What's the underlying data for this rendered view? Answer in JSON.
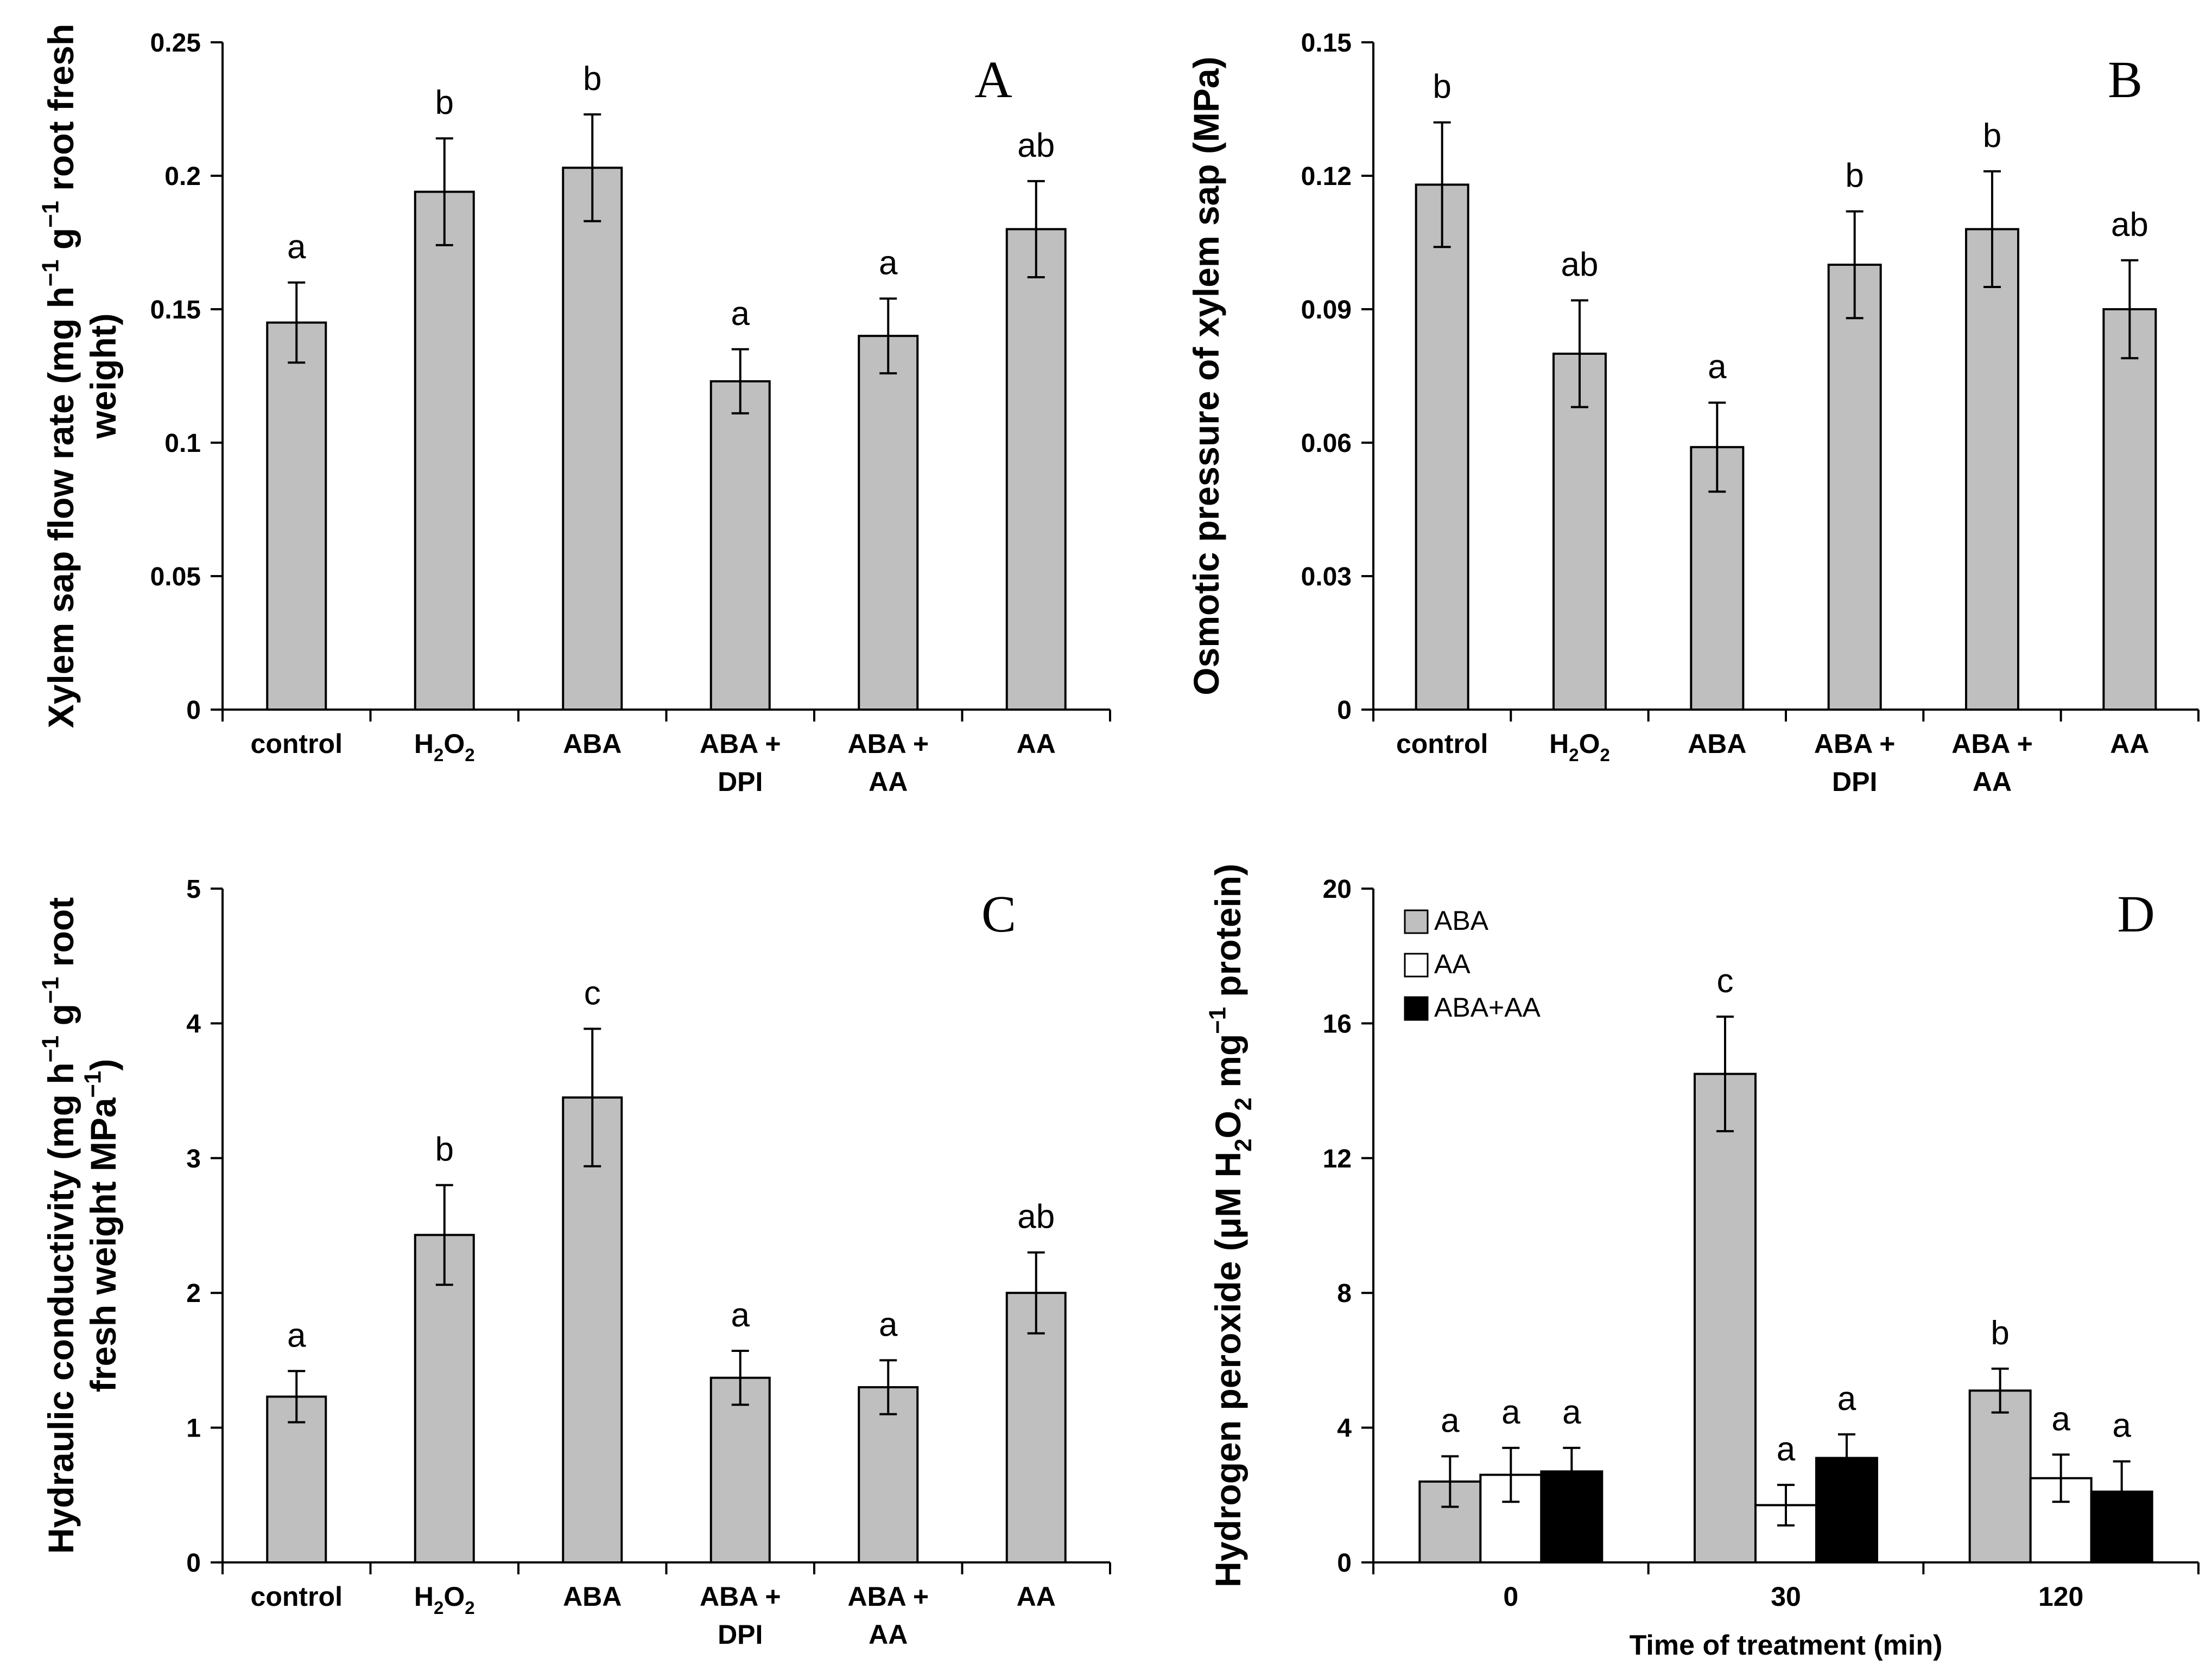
{
  "chart_data": [
    {
      "type": "bar",
      "panel": "A",
      "ylabel": "Xylem sap flow rate (mg h⁻¹ g⁻¹ root fresh weight)",
      "ylabel_lines": [
        "Xylem sap flow rate (mg h⁻¹ g⁻¹ root fresh",
        "weight)"
      ],
      "xlabel": "",
      "ylim": [
        0,
        0.25
      ],
      "yticks": [
        "0",
        "0.05",
        "0.1",
        "0.15",
        "0.2",
        "0.25"
      ],
      "categories": [
        [
          "control"
        ],
        [
          "H₂O₂"
        ],
        [
          "ABA"
        ],
        [
          "ABA +",
          "DPI"
        ],
        [
          "ABA +",
          "AA"
        ],
        [
          "AA"
        ]
      ],
      "values": [
        0.145,
        0.194,
        0.203,
        0.123,
        0.14,
        0.18
      ],
      "errors": [
        0.015,
        0.02,
        0.02,
        0.012,
        0.014,
        0.018
      ],
      "significance": [
        "a",
        "b",
        "b",
        "a",
        "a",
        "ab"
      ],
      "bar_color": "#bfbfbf"
    },
    {
      "type": "bar",
      "panel": "B",
      "ylabel": "Osmotic pressure of xylem sap (MPa)",
      "ylabel_lines": [
        "Osmotic  pressure of xylem  sap (MPa)"
      ],
      "xlabel": "",
      "ylim": [
        0,
        0.15
      ],
      "yticks": [
        "0",
        "0.03",
        "0.06",
        "0.09",
        "0.12",
        "0.15"
      ],
      "categories": [
        [
          "control"
        ],
        [
          "H₂O₂"
        ],
        [
          "ABA"
        ],
        [
          "ABA +",
          "DPI"
        ],
        [
          "ABA +",
          "AA"
        ],
        [
          "AA"
        ]
      ],
      "values": [
        0.118,
        0.08,
        0.059,
        0.1,
        0.108,
        0.09
      ],
      "errors": [
        0.014,
        0.012,
        0.01,
        0.012,
        0.013,
        0.011
      ],
      "significance": [
        "b",
        "ab",
        "a",
        "b",
        "b",
        "ab"
      ],
      "bar_color": "#bfbfbf"
    },
    {
      "type": "bar",
      "panel": "C",
      "ylabel": "Hydraulic conductivity (mg h⁻¹ g⁻¹ root fresh weight MPa⁻¹)",
      "ylabel_lines": [
        "Hydraulic conductivity (mg h⁻¹ g⁻¹ root",
        "fresh weight MPa⁻¹)"
      ],
      "xlabel": "",
      "ylim": [
        0,
        5
      ],
      "yticks": [
        "0",
        "1",
        "2",
        "3",
        "4",
        "5"
      ],
      "categories": [
        [
          "control"
        ],
        [
          "H₂O₂"
        ],
        [
          "ABA"
        ],
        [
          "ABA +",
          "DPI"
        ],
        [
          "ABA +",
          "AA"
        ],
        [
          "AA"
        ]
      ],
      "values": [
        1.23,
        2.43,
        3.45,
        1.37,
        1.3,
        2.0
      ],
      "errors": [
        0.19,
        0.37,
        0.51,
        0.2,
        0.2,
        0.3
      ],
      "significance": [
        "a",
        "b",
        "c",
        "a",
        "a",
        "ab"
      ],
      "bar_color": "#bfbfbf"
    },
    {
      "type": "bar",
      "panel": "D",
      "ylabel": "Hydrogen peroxide (μM H₂O₂ mg⁻¹ protein)",
      "ylabel_lines": [
        "Hydrogen peroxide (μM H₂O₂ mg⁻¹ protein)"
      ],
      "xlabel": "Time of treatment (min)",
      "ylim": [
        0,
        20
      ],
      "yticks": [
        "0",
        "4",
        "8",
        "12",
        "16",
        "20"
      ],
      "categories": [
        [
          "0"
        ],
        [
          "30"
        ],
        [
          "120"
        ]
      ],
      "series": [
        {
          "name": "ABA",
          "color": "#bfbfbf",
          "values": [
            2.4,
            14.5,
            5.1
          ],
          "errors": [
            0.75,
            1.7,
            0.65
          ],
          "significance": [
            "a",
            "c",
            "b"
          ]
        },
        {
          "name": "AA",
          "color": "#ffffff",
          "values": [
            2.6,
            1.7,
            2.5
          ],
          "errors": [
            0.8,
            0.6,
            0.7
          ],
          "significance": [
            "a",
            "a",
            "a"
          ]
        },
        {
          "name": "ABA+AA",
          "color": "#000000",
          "values": [
            2.7,
            3.1,
            2.1
          ],
          "errors": [
            0.7,
            0.7,
            0.9
          ],
          "significance": [
            "a",
            "a",
            "a"
          ]
        }
      ],
      "legend_position": "top-left"
    }
  ]
}
